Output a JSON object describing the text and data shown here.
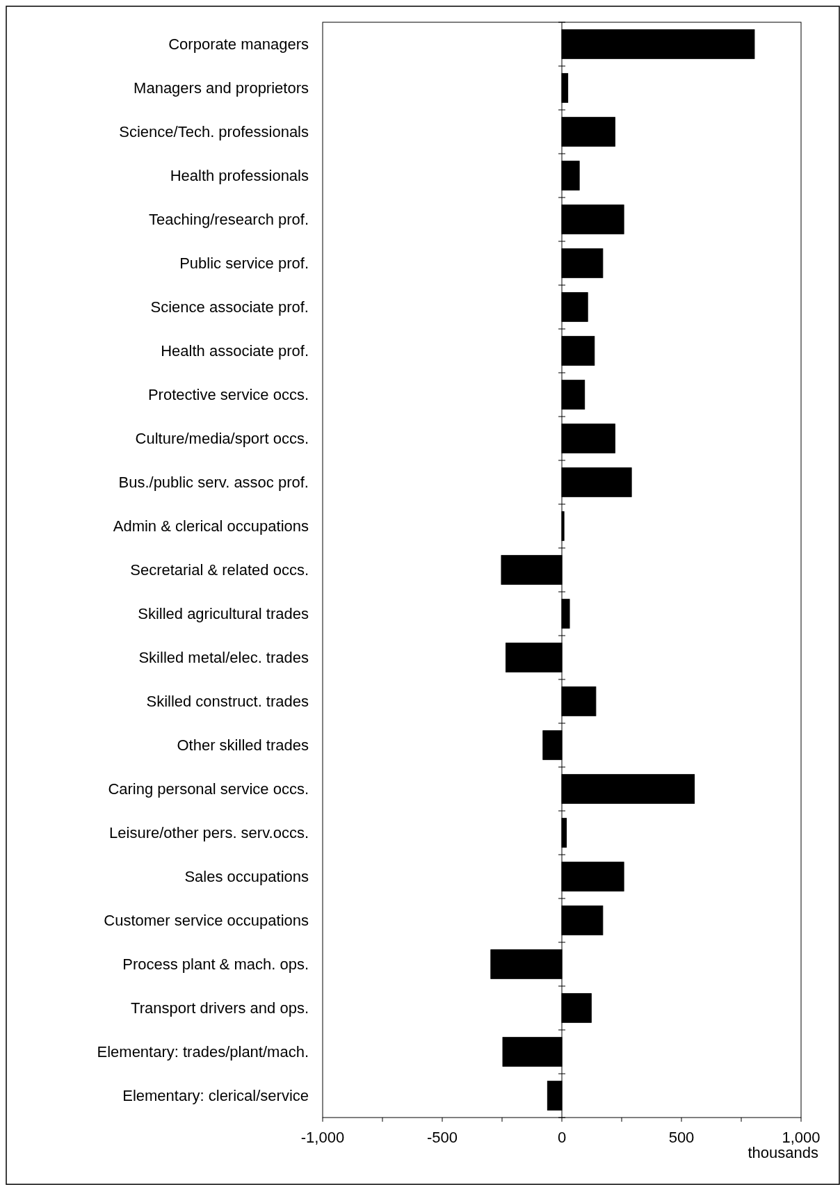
{
  "chart_data": {
    "type": "bar",
    "orientation": "horizontal",
    "xlabel": "thousands",
    "categories": [
      "Corporate managers",
      "Managers and proprietors",
      "Science/Tech. professionals",
      "Health professionals",
      "Teaching/research prof.",
      "Public service prof.",
      "Science associate prof.",
      "Health associate prof.",
      "Protective service occs.",
      "Culture/media/sport occs.",
      "Bus./public serv. assoc prof.",
      "Admin & clerical occupations",
      "Secretarial & related occs.",
      "Skilled agricultural trades",
      "Skilled metal/elec. trades",
      "Skilled construct. trades",
      "Other skilled trades",
      "Caring personal service occs.",
      "Leisure/other pers. serv.occs.",
      "Sales occupations",
      "Customer service occupations",
      "Process plant & mach. ops.",
      "Transport drivers and ops.",
      "Elementary: trades/plant/mach.",
      "Elementary: clerical/service"
    ],
    "values": [
      805,
      25,
      222,
      73,
      259,
      171,
      108,
      136,
      95,
      222,
      291,
      9,
      -253,
      32,
      -234,
      142,
      -79,
      554,
      19,
      259,
      171,
      -297,
      123,
      -247,
      -60
    ],
    "color": "#000000",
    "xlim": [
      -1000,
      1000
    ],
    "xticks": [
      {
        "value": -1000,
        "label": "-1,000"
      },
      {
        "value": -750,
        "label": null
      },
      -500,
      {
        "value": -250,
        "label": null
      },
      0,
      {
        "value": 250,
        "label": null
      },
      500,
      {
        "value": 750,
        "label": null
      },
      {
        "value": 1000,
        "label": "1,000"
      }
    ]
  }
}
